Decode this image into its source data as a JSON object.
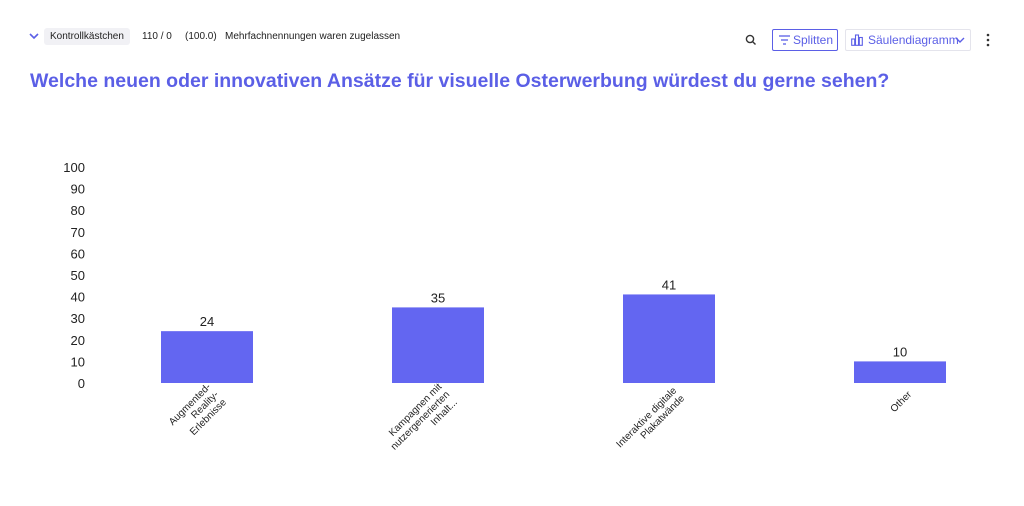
{
  "header": {
    "question_type": "Kontrollkästchen",
    "responses": "110 / 0",
    "percent": "(100.0)",
    "note": "Mehrfachnennungen waren zugelassen",
    "split_label": "Splitten",
    "chart_type_label": "Säulendiagramm",
    "accent_color": "#5b5fe6"
  },
  "icons": {
    "collapse": "chevron-down-icon",
    "search": "search-icon",
    "split": "filter-icon",
    "chart": "bar-chart-icon",
    "dropdown": "chevron-down-icon",
    "more": "more-vertical-icon"
  },
  "question_title": "Welche neuen oder innovativen Ansätze für visuelle Osterwerbung würdest du gerne sehen?",
  "chart_data": {
    "type": "bar",
    "categories": [
      [
        "Augmented-",
        "Reality-",
        "Erlebnisse"
      ],
      [
        "Kampagnen mit",
        "nutzergenerierten",
        "Inhalt..."
      ],
      [
        "Interaktive digitale",
        "Plakatwände"
      ],
      [
        "Other"
      ]
    ],
    "values": [
      24,
      35,
      41,
      10
    ],
    "ylim": [
      0,
      100
    ],
    "yticks": [
      0,
      10,
      20,
      30,
      40,
      50,
      60,
      70,
      80,
      90,
      100
    ],
    "bar_color": "#6366f1",
    "grid": false,
    "legend": "none"
  }
}
